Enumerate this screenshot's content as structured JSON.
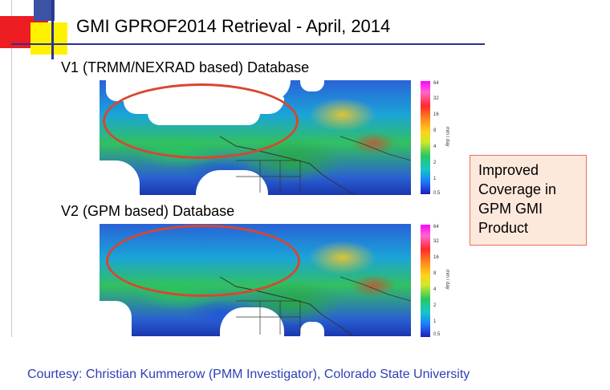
{
  "slide": {
    "title": "GMI  GPROF2014 Retrieval - April, 2014",
    "panel1_label": "V1 (TRMM/NEXRAD based) Database",
    "panel2_label": "V2 (GPM based) Database",
    "colorbar": {
      "unit": "mm / day",
      "ticks": [
        "64",
        "32",
        "16",
        "8",
        "4",
        "2",
        "1",
        "0.5"
      ]
    },
    "callout_text": "Improved\nCoverage in\nGPM GMI\nProduct",
    "courtesy": "Courtesy:  Christian Kummerow  (PMM Investigator), Colorado State University"
  },
  "colors": {
    "accent_blue": "#2e3192",
    "highlight_ellipse": "#d9462f",
    "callout_bg": "#fde8dc",
    "courtesy_text": "#2e3fb5"
  }
}
